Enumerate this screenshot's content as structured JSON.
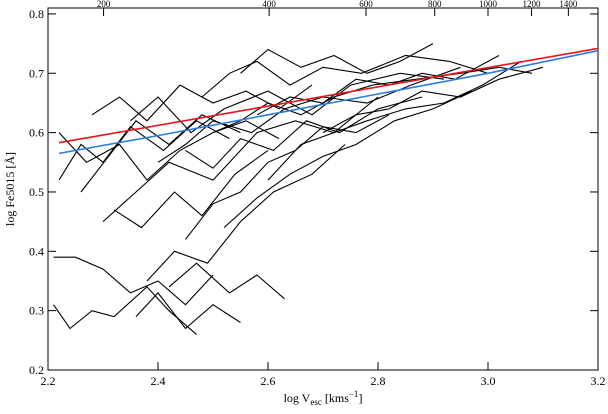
{
  "chart_data": {
    "type": "line",
    "ylabel": "log Fe5015 [Å]",
    "xlabel_parts": [
      "log V",
      "esc",
      " [kms",
      "−1",
      "]"
    ],
    "xlim": [
      2.2,
      3.2
    ],
    "ylim": [
      0.2,
      0.81
    ],
    "xticks": [
      2.2,
      2.4,
      2.6,
      2.8,
      {
        "value": 3,
        "label": "3.0"
      },
      3.2
    ],
    "yticks": [
      0.2,
      0.3,
      0.4,
      0.5,
      0.6,
      0.7,
      0.8
    ],
    "top_xticks": [
      200,
      400,
      600,
      800,
      1000,
      1200,
      1400
    ],
    "line_color": "#000000",
    "lines": [
      {
        "x": [
          2.21,
          2.25,
          2.3,
          2.35,
          2.4,
          2.45,
          2.5
        ],
        "y": [
          0.39,
          0.39,
          0.37,
          0.33,
          0.35,
          0.31,
          0.36
        ]
      },
      {
        "x": [
          2.21,
          2.24,
          2.28,
          2.32,
          2.38,
          2.42,
          2.47
        ],
        "y": [
          0.31,
          0.27,
          0.3,
          0.29,
          0.34,
          0.3,
          0.26
        ]
      },
      {
        "x": [
          2.22,
          2.27,
          2.33,
          2.38,
          2.44,
          2.5,
          2.56,
          2.62
        ],
        "y": [
          0.6,
          0.55,
          0.58,
          0.52,
          0.57,
          0.6,
          0.62,
          0.59
        ]
      },
      {
        "x": [
          2.3,
          2.36,
          2.42,
          2.5,
          2.58,
          2.65,
          2.72,
          2.8
        ],
        "y": [
          0.45,
          0.5,
          0.55,
          0.52,
          0.6,
          0.62,
          0.6,
          0.66
        ]
      },
      {
        "x": [
          2.35,
          2.4,
          2.46,
          2.52,
          2.6,
          2.68,
          2.75,
          2.84,
          2.92
        ],
        "y": [
          0.62,
          0.66,
          0.6,
          0.64,
          0.67,
          0.63,
          0.68,
          0.7,
          0.69
        ]
      },
      {
        "x": [
          2.4,
          2.45,
          2.5,
          2.57,
          2.63,
          2.7,
          2.78,
          2.86,
          2.95
        ],
        "y": [
          0.55,
          0.58,
          0.62,
          0.6,
          0.64,
          0.66,
          0.65,
          0.68,
          0.71
        ]
      },
      {
        "x": [
          2.45,
          2.5,
          2.55,
          2.6,
          2.65,
          2.7,
          2.76,
          2.82
        ],
        "y": [
          0.42,
          0.48,
          0.5,
          0.55,
          0.57,
          0.61,
          0.6,
          0.63
        ]
      },
      {
        "x": [
          2.48,
          2.53,
          2.58,
          2.64,
          2.7,
          2.77,
          2.85,
          2.93,
          3.0
        ],
        "y": [
          0.66,
          0.7,
          0.72,
          0.68,
          0.71,
          0.7,
          0.73,
          0.72,
          0.7
        ]
      },
      {
        "x": [
          2.38,
          2.43,
          2.49,
          2.55,
          2.61,
          2.68,
          2.74
        ],
        "y": [
          0.35,
          0.4,
          0.38,
          0.45,
          0.5,
          0.53,
          0.58
        ]
      },
      {
        "x": [
          2.5,
          2.55,
          2.6,
          2.66,
          2.72,
          2.79,
          2.87,
          2.95,
          3.02,
          3.08
        ],
        "y": [
          0.6,
          0.62,
          0.65,
          0.63,
          0.66,
          0.68,
          0.69,
          0.7,
          0.71,
          0.7
        ]
      },
      {
        "x": [
          2.26,
          2.31,
          2.36,
          2.42,
          2.48,
          2.55
        ],
        "y": [
          0.5,
          0.56,
          0.62,
          0.58,
          0.63,
          0.6
        ]
      },
      {
        "x": [
          2.6,
          2.66,
          2.72,
          2.78,
          2.85,
          2.92,
          2.99,
          3.06
        ],
        "y": [
          0.52,
          0.58,
          0.6,
          0.62,
          0.64,
          0.65,
          0.68,
          0.72
        ]
      },
      {
        "x": [
          2.55,
          2.6,
          2.66,
          2.72,
          2.78,
          2.84,
          2.9
        ],
        "y": [
          0.7,
          0.74,
          0.71,
          0.73,
          0.7,
          0.72,
          0.75
        ]
      },
      {
        "x": [
          2.32,
          2.37,
          2.43,
          2.48,
          2.54,
          2.6
        ],
        "y": [
          0.47,
          0.44,
          0.5,
          0.46,
          0.53,
          0.57
        ]
      },
      {
        "x": [
          2.42,
          2.47,
          2.53,
          2.58,
          2.63
        ],
        "y": [
          0.34,
          0.38,
          0.33,
          0.36,
          0.32
        ]
      },
      {
        "x": [
          2.7,
          2.76,
          2.82,
          2.88,
          2.95,
          3.02,
          3.1
        ],
        "y": [
          0.6,
          0.63,
          0.64,
          0.67,
          0.66,
          0.69,
          0.71
        ]
      },
      {
        "x": [
          2.28,
          2.33,
          2.38,
          2.44,
          2.5,
          2.56,
          2.62,
          2.68
        ],
        "y": [
          0.63,
          0.66,
          0.62,
          0.68,
          0.65,
          0.67,
          0.64,
          0.68
        ]
      },
      {
        "x": [
          2.45,
          2.5,
          2.55,
          2.61,
          2.67,
          2.73,
          2.8,
          2.88
        ],
        "y": [
          0.57,
          0.54,
          0.59,
          0.57,
          0.62,
          0.6,
          0.64,
          0.66
        ]
      },
      {
        "x": [
          2.52,
          2.58,
          2.64,
          2.7,
          2.76,
          2.83,
          2.9,
          2.97
        ],
        "y": [
          0.44,
          0.49,
          0.53,
          0.56,
          0.58,
          0.62,
          0.64,
          0.67
        ]
      },
      {
        "x": [
          2.36,
          2.4,
          2.45,
          2.5,
          2.55
        ],
        "y": [
          0.29,
          0.33,
          0.27,
          0.31,
          0.28
        ]
      },
      {
        "x": [
          2.22,
          2.26,
          2.3,
          2.35,
          2.41,
          2.47,
          2.53
        ],
        "y": [
          0.52,
          0.58,
          0.55,
          0.61,
          0.57,
          0.62,
          0.59
        ]
      },
      {
        "x": [
          2.58,
          2.64,
          2.7,
          2.76,
          2.82,
          2.88,
          2.94,
          3.02
        ],
        "y": [
          0.63,
          0.66,
          0.65,
          0.69,
          0.68,
          0.7,
          0.69,
          0.73
        ]
      }
    ],
    "fits": [
      {
        "color": "#e8141c",
        "x": [
          2.22,
          3.2
        ],
        "y": [
          0.583,
          0.742
        ]
      },
      {
        "color": "#2a7de1",
        "x": [
          2.22,
          2.4,
          2.6,
          2.8,
          3.0,
          3.2
        ],
        "y": [
          0.565,
          0.595,
          0.63,
          0.665,
          0.7,
          0.738
        ]
      }
    ]
  }
}
